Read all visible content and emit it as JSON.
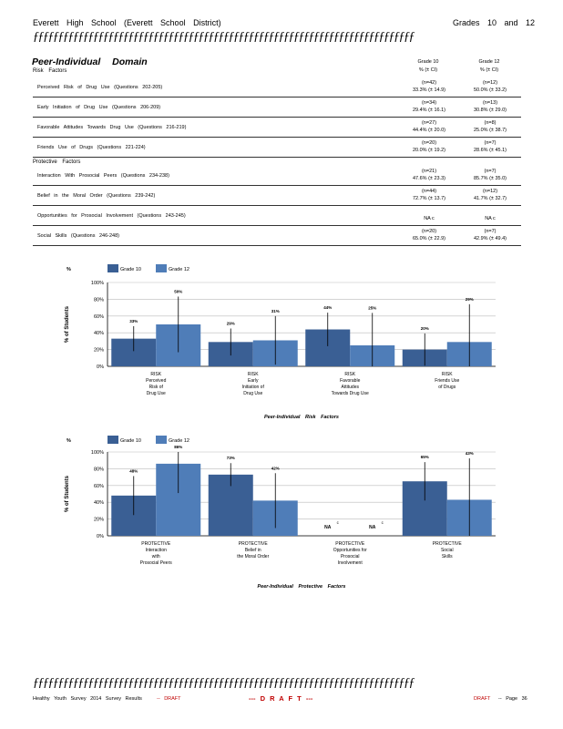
{
  "header": {
    "school": "Everett High School (Everett School District)",
    "grades": "Grades 10 and 12",
    "rule": "ƒƒƒƒƒƒƒƒƒƒƒƒƒƒƒƒƒƒƒƒƒƒƒƒƒƒƒƒƒƒƒƒƒƒƒƒƒƒƒƒƒƒƒƒƒƒƒƒƒƒƒƒƒƒƒƒƒƒƒƒƒƒƒƒƒƒƒƒƒƒƒƒƒƒƒƒ"
  },
  "domain_title": "Peer-Individual Domain",
  "risk_label": "Risk Factors",
  "protective_label": "Protective Factors",
  "columns": [
    {
      "grade": "Grade 10",
      "sub": "% (± CI)"
    },
    {
      "grade": "Grade 12",
      "sub": "% (± CI)"
    }
  ],
  "risk_rows": [
    {
      "label": "Perceived Risk of Drug Use (Questions 202-205)",
      "g10_n": "(n=42)",
      "g10_v": "33.3% (± 14.9)",
      "g12_n": "(n=12)",
      "g12_v": "50.0% (± 33.2)"
    },
    {
      "label": "Early Initiation of Drug Use (Questions 206-209)",
      "g10_n": "(n=34)",
      "g10_v": "29.4% (± 16.1)",
      "g12_n": "(n=13)",
      "g12_v": "30.8% (± 29.0)"
    },
    {
      "label": "Favorable Attitudes Towards Drug Use (Questions 216-219)",
      "g10_n": "(n=27)",
      "g10_v": "44.4% (± 20.0)",
      "g12_n": "(n=8)",
      "g12_v": "25.0% (± 38.7)"
    },
    {
      "label": "Friends Use of Drugs (Questions 221-224)",
      "g10_n": "(n=20)",
      "g10_v": "20.0% (± 19.2)",
      "g12_n": "(n=7)",
      "g12_v": "28.6% (± 45.1)"
    }
  ],
  "protective_rows": [
    {
      "label": "Interaction With Prosocial Peers (Questions 234-238)",
      "g10_n": "(n=21)",
      "g10_v": "47.6% (± 23.3)",
      "g12_n": "(n=7)",
      "g12_v": "85.7% (± 35.0)"
    },
    {
      "label": "Belief in the Moral Order (Questions 239-242)",
      "g10_n": "(n=44)",
      "g10_v": "72.7% (± 13.7)",
      "g12_n": "(n=12)",
      "g12_v": "41.7% (± 32.7)"
    },
    {
      "label": "Opportunities for Prosocial Involvement (Questions 243-245)",
      "g10_n": "",
      "g10_v": "NA c",
      "g12_n": "",
      "g12_v": "NA c"
    },
    {
      "label": "Social Skills (Questions 246-248)",
      "g10_n": "(n=20)",
      "g10_v": "65.0% (± 22.9)",
      "g12_n": "(n=7)",
      "g12_v": "42.9% (± 49.4)"
    }
  ],
  "chart_data": [
    {
      "type": "bar",
      "title": "",
      "xlabel": "Peer-Individual Risk Factors",
      "ylabel": "% of Students",
      "ylim": [
        0,
        100
      ],
      "yticks": [
        "0%",
        "20%",
        "40%",
        "60%",
        "80%",
        "100%"
      ],
      "categories": [
        [
          "RISK",
          "Perceived",
          "Risk of",
          "Drug Use"
        ],
        [
          "RISK",
          "Early",
          "Initiation of",
          "Drug Use"
        ],
        [
          "RISK",
          "Favorable",
          "Attitudes",
          "Towards Drug Use"
        ],
        [
          "RISK",
          "Friends Use",
          "of Drugs"
        ]
      ],
      "series": [
        {
          "name": "Grade 10",
          "color": "#3a5f94",
          "values": [
            33,
            29,
            44,
            20
          ],
          "ci": [
            14.9,
            16.1,
            20.0,
            19.2
          ],
          "labels": [
            "33%",
            "29%",
            "44%",
            "20%"
          ]
        },
        {
          "name": "Grade 12",
          "color": "#4f7db8",
          "values": [
            50,
            31,
            25,
            29
          ],
          "ci": [
            33.2,
            29.0,
            38.7,
            45.1
          ],
          "labels": [
            "50%",
            "31%",
            "25%",
            "29%"
          ]
        }
      ],
      "legend": "top-left",
      "grid": true
    },
    {
      "type": "bar",
      "title": "",
      "xlabel": "Peer-Individual Protective Factors",
      "ylabel": "% of Students",
      "ylim": [
        0,
        100
      ],
      "yticks": [
        "0%",
        "20%",
        "40%",
        "60%",
        "80%",
        "100%"
      ],
      "categories": [
        [
          "PROTECTIVE",
          "Interaction",
          "with",
          "Prosocial Peers"
        ],
        [
          "PROTECTIVE",
          "Belief in",
          "the Moral Order"
        ],
        [
          "PROTECTIVE",
          "Opportunities for",
          "Prosocial",
          "Involvement"
        ],
        [
          "PROTECTIVE",
          "Social",
          "Skills"
        ]
      ],
      "series": [
        {
          "name": "Grade 10",
          "color": "#3a5f94",
          "values": [
            48,
            73,
            null,
            65
          ],
          "ci": [
            23.3,
            13.7,
            null,
            22.9
          ],
          "labels": [
            "48%",
            "73%",
            "NA",
            "65%"
          ]
        },
        {
          "name": "Grade 12",
          "color": "#4f7db8",
          "values": [
            86,
            42,
            null,
            43
          ],
          "ci": [
            35.0,
            32.7,
            null,
            49.4
          ],
          "labels": [
            "86%",
            "42%",
            "NA",
            "43%"
          ]
        }
      ],
      "na_note": "c",
      "legend": "top-left",
      "grid": true
    }
  ],
  "footer": {
    "rule": "ƒƒƒƒƒƒƒƒƒƒƒƒƒƒƒƒƒƒƒƒƒƒƒƒƒƒƒƒƒƒƒƒƒƒƒƒƒƒƒƒƒƒƒƒƒƒƒƒƒƒƒƒƒƒƒƒƒƒƒƒƒƒƒƒƒƒƒƒƒƒƒƒƒƒƒƒ",
    "survey": "Healthy Youth Survey 2014 Survey Results",
    "draft_small": "-- DRAFT",
    "draft_center": "--- D R A F T ---",
    "draft_right": "DRAFT",
    "page": "-- Page 36"
  }
}
